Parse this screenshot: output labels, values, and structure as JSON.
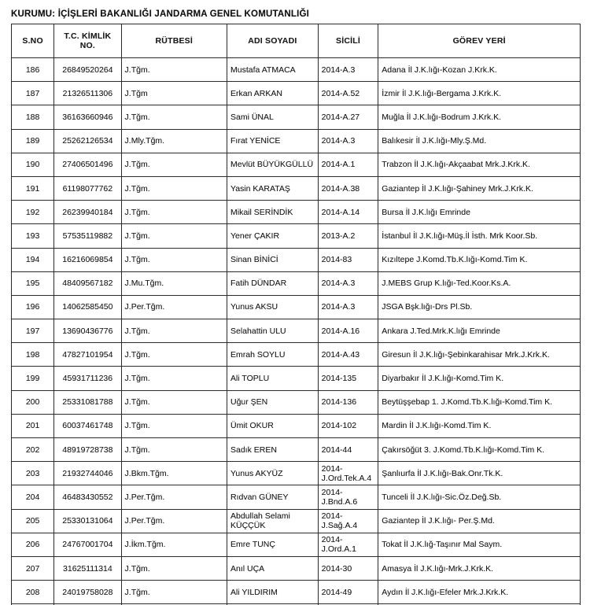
{
  "page": {
    "title": "KURUMU: İÇİŞLERİ BAKANLIĞI JANDARMA GENEL KOMUTANLIĞI"
  },
  "table": {
    "headers": [
      "S.NO",
      "T.C. KİMLİK NO.",
      "RÜTBESİ",
      "ADI SOYADI",
      "SİCİLİ",
      "GÖREV YERİ"
    ],
    "rows": [
      [
        "186",
        "26849520264",
        "J.Tğm.",
        "Mustafa ATMACA",
        "2014-A.3",
        "Adana İl J.K.lığı-Kozan J.Krk.K."
      ],
      [
        "187",
        "21326511306",
        "J.Tğm",
        "Erkan ARKAN",
        "2014-A.52",
        "İzmir İl J.K.lığı-Bergama J.Krk.K."
      ],
      [
        "188",
        "36163660946",
        "J.Tğm.",
        "Sami ÜNAL",
        "2014-A.27",
        "Muğla İl J.K.lığı-Bodrum J.Krk.K."
      ],
      [
        "189",
        "25262126534",
        "J.Mly.Tğm.",
        "Fırat YENİCE",
        "2014-A.3",
        "Balıkesir İl J.K.lığı-Mly.Ş.Md."
      ],
      [
        "190",
        "27406501496",
        "J.Tğm.",
        "Mevlüt BÜYÜKGÜLLÜ",
        "2014-A.1",
        "Trabzon İl J.K.lığı-Akçaabat Mrk.J.Krk.K."
      ],
      [
        "191",
        "61198077762",
        "J.Tğm.",
        "Yasin KARATAŞ",
        "2014-A.38",
        "Gaziantep İl J.K.lığı-Şahiney Mrk.J.Krk.K."
      ],
      [
        "192",
        "26239940184",
        "J.Tğm.",
        "Mikail SERİNDİK",
        "2014-A.14",
        "Bursa İl J.K.lığı Emrinde"
      ],
      [
        "193",
        "57535119882",
        "J.Tğm.",
        "Yener ÇAKIR",
        "2013-A.2",
        "İstanbul İl J.K.lığı-Müş.İl İsth. Mrk Koor.Sb."
      ],
      [
        "194",
        "16216069854",
        "J.Tğm.",
        "Sinan BİNİCİ",
        "2014-83",
        "Kızıltepe J.Komd.Tb.K.lığı-Komd.Tim K."
      ],
      [
        "195",
        "48409567182",
        "J.Mu.Tğm.",
        "Fatih DÜNDAR",
        "2014-A.3",
        "J.MEBS Grup K.lığı-Ted.Koor.Ks.A."
      ],
      [
        "196",
        "14062585450",
        "J.Per.Tğm.",
        "Yunus AKSU",
        "2014-A.3",
        "JSGA Bşk.lığı-Drs Pl.Sb."
      ],
      [
        "197",
        "13690436776",
        "J.Tğm.",
        "Selahattin ULU",
        "2014-A.16",
        "Ankara J.Ted.Mrk.K.lığı Emrinde"
      ],
      [
        "198",
        "47827101954",
        "J.Tğm.",
        "Emrah SOYLU",
        "2014-A.43",
        "Giresun İl J.K.lığı-Şebinkarahisar Mrk.J.Krk.K."
      ],
      [
        "199",
        "45931711236",
        "J.Tğm.",
        "Ali TOPLU",
        "2014-135",
        "Diyarbakır İl J.K.lığı-Komd.Tim K."
      ],
      [
        "200",
        "25331081788",
        "J.Tğm.",
        "Uğur ŞEN",
        "2014-136",
        "Beytüşşebap 1. J.Komd.Tb.K.lığı-Komd.Tim K."
      ],
      [
        "201",
        "60037461748",
        "J.Tğm.",
        "Ümit OKUR",
        "2014-102",
        "Mardin İl J.K.lığı-Komd.Tim K."
      ],
      [
        "202",
        "48919728738",
        "J.Tğm.",
        "Sadık EREN",
        "2014-44",
        "Çakırsöğüt 3. J.Komd.Tb.K.lığı-Komd.Tim K."
      ],
      [
        "203",
        "21932744046",
        "J.Bkm.Tğm.",
        "Yunus AKYÜZ",
        "2014-J.Ord.Tek.A.4",
        "Şanlıurfa İl J.K.lığı-Bak.Onr.Tk.K."
      ],
      [
        "204",
        "46483430552",
        "J.Per.Tğm.",
        "Rıdvan GÜNEY",
        "2014-J.Bnd.A.6",
        "Tunceli İl J.K.lığı-Sic.Öz.Değ.Sb."
      ],
      [
        "205",
        "25330131064",
        "J.Per.Tğm.",
        "Abdullah Selami KÜÇÇÜK",
        "2014-J.Sağ.A.4",
        "Gaziantep İl J.K.lığı- Per.Ş.Md."
      ],
      [
        "206",
        "24767001704",
        "J.İkm.Tğm.",
        "Emre TUNÇ",
        "2014-J.Ord.A.1",
        "Tokat İl J.K.lığ-Taşınır Mal Saym."
      ],
      [
        "207",
        "31625111314",
        "J.Tğm.",
        "Anıl UÇA",
        "2014-30",
        "Amasya İl J.K.lığı-Mrk.J.Krk.K."
      ],
      [
        "208",
        "24019758028",
        "J.Tğm.",
        "Ali YILDIRIM",
        "2014-49",
        "Aydın İl J.K.lığı-Efeler Mrk.J.Krk.K."
      ]
    ]
  }
}
